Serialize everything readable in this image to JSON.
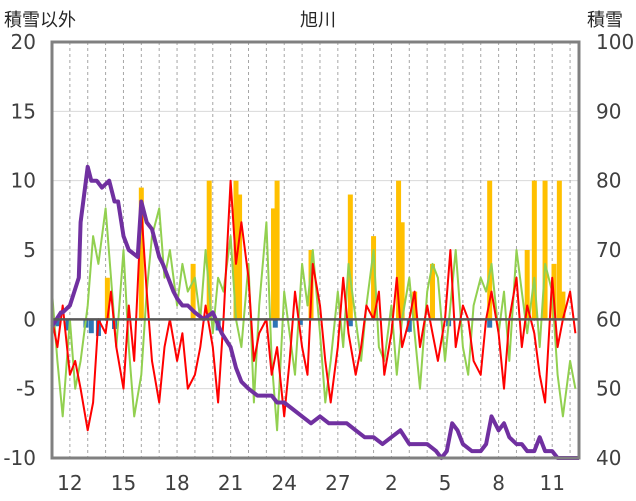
{
  "chart_data": {
    "type": "line",
    "title": "旭川",
    "left_axis_label": "積雪以外",
    "right_axis_label": "積雪",
    "ylim_left": [
      -10,
      20
    ],
    "ylim_right": [
      40,
      100
    ],
    "yticks_left": [
      "20",
      "15",
      "10",
      "5",
      "0",
      "-5",
      "-10"
    ],
    "yticks_right": [
      "100",
      "90",
      "80",
      "70",
      "60",
      "50",
      "40"
    ],
    "xticks": [
      "12",
      "15",
      "18",
      "21",
      "24",
      "27",
      "2",
      "5",
      "8",
      "11"
    ],
    "x_range_days": [
      0,
      29.5
    ],
    "grid": true,
    "colors": {
      "snow_depth": "#7030a0",
      "temperature": "#ff0000",
      "green_series": "#92d050",
      "orange_bars": "#ffc000",
      "blue_bars": "#2e75b6",
      "frame": "#808080",
      "zero_line": "#595959"
    },
    "series": [
      {
        "key": "snow_depth",
        "axis": "right",
        "x": [
          0,
          0.5,
          0.6,
          1.0,
          1.5,
          1.6,
          2.0,
          2.2,
          2.5,
          2.8,
          3.2,
          3.5,
          3.7,
          4.0,
          4.3,
          4.8,
          5.0,
          5.3,
          5.6,
          6.0,
          6.2,
          6.5,
          6.8,
          7.0,
          7.3,
          7.6,
          8.0,
          8.5,
          9.0,
          9.5,
          10.0,
          10.3,
          10.6,
          11.0,
          11.5,
          12.0,
          12.3,
          12.6,
          13.0,
          13.5,
          14.0,
          14.5,
          15.0,
          15.5,
          16.0,
          16.5,
          17.0,
          17.5,
          18.0,
          18.5,
          19.0,
          19.5,
          20.0,
          20.5,
          21.0,
          21.5,
          21.8,
          22.1,
          22.4,
          22.7,
          23.0,
          23.5,
          24.0,
          24.3,
          24.6,
          25.0,
          25.3,
          25.6,
          26.0,
          26.3,
          26.6,
          27.0,
          27.3,
          27.6,
          28.0,
          28.3,
          28.6,
          29.0,
          29.5
        ],
        "values": [
          59,
          61,
          61,
          62,
          66,
          74,
          82,
          80,
          80,
          79,
          80,
          77,
          77,
          72,
          70,
          69,
          77,
          74,
          73,
          69,
          68,
          66,
          64,
          63,
          62,
          62,
          61,
          60,
          61,
          58,
          56,
          53,
          51,
          50,
          49,
          49,
          49,
          48,
          48,
          47,
          46,
          45,
          46,
          45,
          45,
          45,
          44,
          43,
          43,
          42,
          43,
          44,
          42,
          42,
          42,
          41,
          40,
          41,
          45,
          44,
          42,
          41,
          41,
          42,
          46,
          44,
          45,
          43,
          42,
          42,
          41,
          41,
          43,
          41,
          41,
          40,
          40,
          40,
          40
        ]
      },
      {
        "key": "temperature",
        "axis": "left",
        "x": [
          0,
          0.3,
          0.6,
          1.0,
          1.3,
          1.6,
          2.0,
          2.3,
          2.6,
          3.0,
          3.3,
          3.6,
          4.0,
          4.3,
          4.6,
          5.0,
          5.3,
          5.6,
          6.0,
          6.3,
          6.6,
          7.0,
          7.3,
          7.6,
          8.0,
          8.3,
          8.6,
          9.0,
          9.3,
          9.6,
          10.0,
          10.3,
          10.6,
          11.0,
          11.3,
          11.6,
          12.0,
          12.3,
          12.6,
          13.0,
          13.3,
          13.6,
          14.0,
          14.3,
          14.6,
          15.0,
          15.3,
          15.6,
          16.0,
          16.3,
          16.6,
          17.0,
          17.3,
          17.6,
          18.0,
          18.3,
          18.6,
          19.0,
          19.3,
          19.6,
          20.0,
          20.3,
          20.6,
          21.0,
          21.3,
          21.6,
          22.0,
          22.3,
          22.6,
          23.0,
          23.3,
          23.6,
          24.0,
          24.3,
          24.6,
          25.0,
          25.3,
          25.6,
          26.0,
          26.3,
          26.6,
          27.0,
          27.3,
          27.6,
          28.0,
          28.3,
          28.6,
          29.0,
          29.3
        ],
        "values": [
          0,
          -2,
          1,
          -4,
          -3,
          -5,
          -8,
          -6,
          0,
          -1,
          2,
          -2,
          -5,
          1,
          -3,
          8,
          2,
          -3,
          -6,
          -2,
          0,
          -3,
          -1,
          -5,
          -4,
          -2,
          1,
          -2,
          -6,
          0,
          10,
          4,
          7,
          3,
          -3,
          -1,
          0,
          -4,
          -2,
          -7,
          -3,
          2,
          -2,
          -4,
          4,
          1,
          -3,
          -6,
          -2,
          3,
          -1,
          -4,
          -2,
          1,
          0,
          2,
          -4,
          -1,
          3,
          -2,
          0,
          2,
          -2,
          1,
          -1,
          -3,
          0,
          5,
          -2,
          1,
          0,
          -3,
          -4,
          0,
          2,
          -1,
          -5,
          0,
          3,
          -2,
          1,
          -1,
          -4,
          -6,
          3,
          -2,
          0,
          2,
          -1
        ]
      },
      {
        "key": "green_series",
        "axis": "left",
        "x": [
          0,
          0.3,
          0.6,
          1.0,
          1.3,
          1.6,
          2.0,
          2.3,
          2.6,
          3.0,
          3.3,
          3.6,
          4.0,
          4.3,
          4.6,
          5.0,
          5.3,
          5.6,
          6.0,
          6.3,
          6.6,
          7.0,
          7.3,
          7.6,
          8.0,
          8.3,
          8.6,
          9.0,
          9.3,
          9.6,
          10.0,
          10.3,
          10.6,
          11.0,
          11.3,
          11.6,
          12.0,
          12.3,
          12.6,
          13.0,
          13.3,
          13.6,
          14.0,
          14.3,
          14.6,
          15.0,
          15.3,
          15.6,
          16.0,
          16.3,
          16.6,
          17.0,
          17.3,
          17.6,
          18.0,
          18.3,
          18.6,
          19.0,
          19.3,
          19.6,
          20.0,
          20.3,
          20.6,
          21.0,
          21.3,
          21.6,
          22.0,
          22.3,
          22.6,
          23.0,
          23.3,
          23.6,
          24.0,
          24.3,
          24.6,
          25.0,
          25.3,
          25.6,
          26.0,
          26.3,
          26.6,
          27.0,
          27.3,
          27.6,
          28.0,
          28.3,
          28.6,
          29.0,
          29.3
        ],
        "values": [
          2,
          -3,
          -7,
          0,
          -5,
          -3,
          1,
          6,
          4,
          8,
          3,
          -2,
          5,
          -2,
          -7,
          -4,
          2,
          6,
          8,
          3,
          5,
          1,
          4,
          2,
          3,
          0,
          5,
          -1,
          3,
          2,
          6,
          0,
          -2,
          4,
          -6,
          1,
          7,
          -3,
          -8,
          2,
          -1,
          -4,
          4,
          1,
          5,
          -1,
          -6,
          -3,
          2,
          -2,
          4,
          0,
          -3,
          1,
          5,
          -2,
          -3,
          1,
          -4,
          0,
          3,
          -1,
          -5,
          2,
          4,
          3,
          -3,
          1,
          5,
          -2,
          -4,
          1,
          3,
          2,
          4,
          -1,
          2,
          -3,
          5,
          2,
          -1,
          3,
          -2,
          4,
          2,
          -4,
          -7,
          -3,
          -5
        ]
      }
    ],
    "bar_series": [
      {
        "key": "orange_bars",
        "axis": "left",
        "base": 0,
        "x": [
          3.1,
          5.0,
          7.9,
          8.8,
          10.3,
          10.5,
          12.4,
          12.6,
          14.5,
          16.7,
          18.0,
          19.4,
          19.6,
          20.3,
          21.3,
          24.5,
          26.6,
          27.0,
          27.6,
          28.1,
          28.4,
          28.6
        ],
        "values": [
          3,
          9.5,
          4,
          10,
          10,
          9,
          8,
          10,
          5,
          9,
          6,
          10,
          7,
          2,
          4,
          10,
          5,
          10,
          10,
          4,
          10,
          2
        ]
      },
      {
        "key": "blue_bars",
        "axis": "left",
        "base": 0,
        "x": [
          0.3,
          0.9,
          1.9,
          2.2,
          2.6,
          3.5,
          9.3,
          12.5,
          13.9,
          16.7,
          20.0,
          22.2,
          24.5
        ],
        "values": [
          -0.5,
          -0.8,
          -0.6,
          -1.0,
          -1.2,
          -0.7,
          -0.8,
          -0.6,
          -0.4,
          -0.5,
          -0.9,
          -0.5,
          -0.6
        ]
      }
    ]
  }
}
